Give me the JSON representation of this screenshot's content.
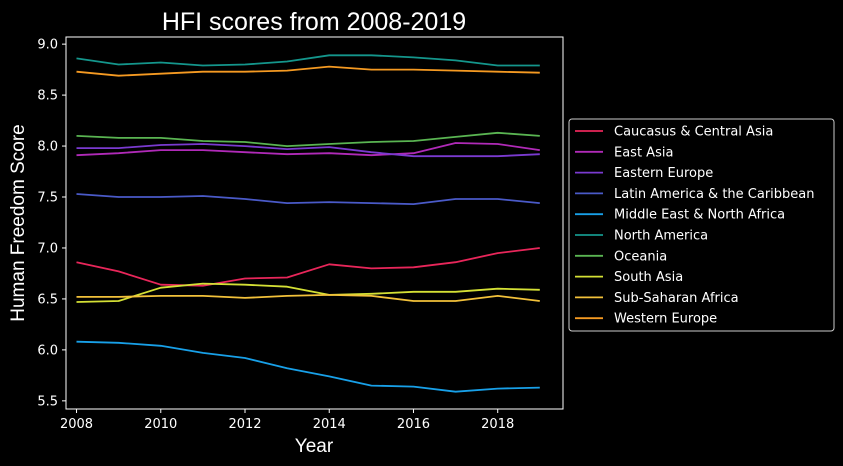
{
  "chart_data": {
    "type": "line",
    "title": "HFI scores from 2008-2019",
    "xlabel": "Year",
    "ylabel": "Human Freedom Score",
    "xlim": [
      2007.75,
      2019.55
    ],
    "ylim": [
      5.42,
      9.07
    ],
    "xticks": [
      2008,
      2010,
      2012,
      2014,
      2016,
      2018
    ],
    "yticks": [
      "5.5",
      "6.0",
      "6.5",
      "7.0",
      "7.5",
      "8.0",
      "8.5",
      "9.0"
    ],
    "grid": false,
    "legend_position": "right",
    "x": [
      2008,
      2009,
      2010,
      2011,
      2012,
      2013,
      2014,
      2015,
      2016,
      2017,
      2018,
      2019
    ],
    "series": [
      {
        "name": "Caucasus & Central Asia",
        "color": "#e8265a",
        "values": [
          6.86,
          6.77,
          6.64,
          6.63,
          6.7,
          6.71,
          6.84,
          6.8,
          6.81,
          6.86,
          6.95,
          7.0
        ]
      },
      {
        "name": "East Asia",
        "color": "#b02ab8",
        "values": [
          7.91,
          7.93,
          7.96,
          7.96,
          7.94,
          7.92,
          7.93,
          7.91,
          7.93,
          8.03,
          8.02,
          7.96
        ]
      },
      {
        "name": "Eastern Europe",
        "color": "#7a3ad0",
        "values": [
          7.98,
          7.98,
          8.01,
          8.02,
          8.0,
          7.97,
          7.99,
          7.94,
          7.9,
          7.9,
          7.9,
          7.92
        ]
      },
      {
        "name": "Latin America & the Caribbean",
        "color": "#4a5ac8",
        "values": [
          7.53,
          7.5,
          7.5,
          7.51,
          7.48,
          7.44,
          7.45,
          7.44,
          7.43,
          7.48,
          7.48,
          7.44
        ]
      },
      {
        "name": "Middle East & North Africa",
        "color": "#18a0e8",
        "values": [
          6.08,
          6.07,
          6.04,
          5.97,
          5.92,
          5.82,
          5.74,
          5.65,
          5.64,
          5.59,
          5.62,
          5.63
        ]
      },
      {
        "name": "North America",
        "color": "#14968c",
        "values": [
          8.86,
          8.8,
          8.82,
          8.79,
          8.8,
          8.83,
          8.89,
          8.89,
          8.87,
          8.84,
          8.79,
          8.79
        ]
      },
      {
        "name": "Oceania",
        "color": "#5ab552",
        "values": [
          8.1,
          8.08,
          8.08,
          8.05,
          8.04,
          8.0,
          8.02,
          8.04,
          8.05,
          8.09,
          8.13,
          8.1
        ]
      },
      {
        "name": "South Asia",
        "color": "#d4e035",
        "values": [
          6.47,
          6.48,
          6.61,
          6.65,
          6.64,
          6.62,
          6.54,
          6.55,
          6.57,
          6.57,
          6.6,
          6.59
        ]
      },
      {
        "name": "Sub-Saharan Africa",
        "color": "#f2c13a",
        "values": [
          6.52,
          6.52,
          6.53,
          6.53,
          6.51,
          6.53,
          6.54,
          6.53,
          6.48,
          6.48,
          6.53,
          6.48
        ]
      },
      {
        "name": "Western Europe",
        "color": "#f59a22",
        "values": [
          8.73,
          8.69,
          8.71,
          8.73,
          8.73,
          8.74,
          8.78,
          8.75,
          8.75,
          8.74,
          8.73,
          8.72
        ]
      }
    ]
  }
}
